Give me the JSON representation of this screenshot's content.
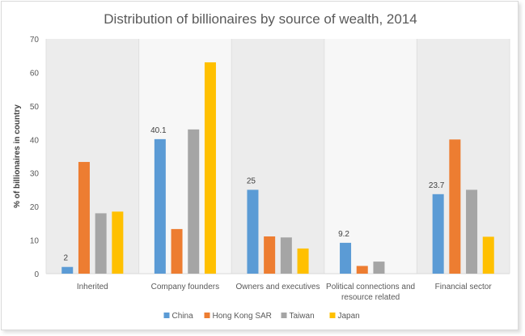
{
  "chart_data": {
    "type": "bar",
    "title": "Distribution of billionaires by source of wealth, 2014",
    "xlabel": "",
    "ylabel": "% of billionaires in country",
    "ylim": [
      0,
      70
    ],
    "yticks": [
      0,
      10,
      20,
      30,
      40,
      50,
      60,
      70
    ],
    "grid": "vertical-stripes",
    "legend_position": "bottom",
    "categories": [
      "Inherited",
      "Company founders",
      "Owners and executives",
      "Political connections and resource related",
      "Financial sector"
    ],
    "category_label_lines": [
      [
        "Inherited"
      ],
      [
        "Company founders"
      ],
      [
        "Owners and executives"
      ],
      [
        "Political connections and",
        "resource related"
      ],
      [
        "Financial sector"
      ]
    ],
    "series": [
      {
        "name": "China",
        "color": "#5b9bd5",
        "values": [
          2,
          40.1,
          25,
          9.2,
          23.7
        ],
        "labels": [
          "2",
          "40.1",
          "25",
          "9.2",
          "23.7"
        ]
      },
      {
        "name": "Hong Kong SAR",
        "color": "#ed7d31",
        "values": [
          33.3,
          13.3,
          11.1,
          2.3,
          40
        ]
      },
      {
        "name": "Taiwan",
        "color": "#a5a5a5",
        "values": [
          18,
          43,
          10.8,
          3.6,
          25
        ]
      },
      {
        "name": "Japan",
        "color": "#ffc000",
        "values": [
          18.5,
          63,
          7.5,
          0,
          11
        ]
      }
    ]
  }
}
